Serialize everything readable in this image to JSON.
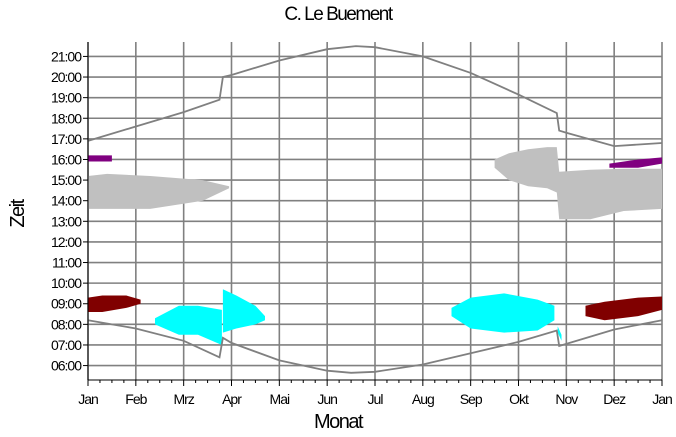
{
  "chart_data": {
    "type": "area",
    "title": "C. Le Buement",
    "xlabel": "Monat",
    "ylabel": "Zeit",
    "x_ticks": [
      "Jan",
      "Feb",
      "Mrz",
      "Apr",
      "Mai",
      "Jun",
      "Jul",
      "Aug",
      "Sep",
      "Okt",
      "Nov",
      "Dez",
      "Jan"
    ],
    "y_ticks": [
      "06:00",
      "07:00",
      "08:00",
      "09:00",
      "10:00",
      "11:00",
      "12:00",
      "13:00",
      "14:00",
      "15:00",
      "16:00",
      "17:00",
      "18:00",
      "19:00",
      "20:00",
      "21:00"
    ],
    "xlim": [
      0,
      12
    ],
    "ylim": [
      5.3,
      21.7
    ],
    "grid": true,
    "sunset_hours": [
      [
        0,
        16.9
      ],
      [
        1,
        17.6
      ],
      [
        2,
        18.3
      ],
      [
        2.75,
        18.9
      ],
      [
        2.82,
        20.0
      ],
      [
        3,
        20.1
      ],
      [
        4,
        20.8
      ],
      [
        5,
        21.35
      ],
      [
        5.6,
        21.5
      ],
      [
        6,
        21.45
      ],
      [
        7,
        21.0
      ],
      [
        8,
        20.2
      ],
      [
        9,
        19.15
      ],
      [
        9.8,
        18.25
      ],
      [
        9.85,
        17.4
      ],
      [
        10,
        17.3
      ],
      [
        11,
        16.65
      ],
      [
        12,
        16.8
      ]
    ],
    "sunrise_hours": [
      [
        0,
        8.2
      ],
      [
        1,
        7.8
      ],
      [
        2,
        7.2
      ],
      [
        2.75,
        6.4
      ],
      [
        2.82,
        7.35
      ],
      [
        3,
        7.1
      ],
      [
        4,
        6.25
      ],
      [
        5,
        5.75
      ],
      [
        5.5,
        5.65
      ],
      [
        6,
        5.7
      ],
      [
        7,
        6.05
      ],
      [
        8,
        6.6
      ],
      [
        9,
        7.15
      ],
      [
        9.8,
        7.7
      ],
      [
        9.85,
        6.95
      ],
      [
        10,
        7.05
      ],
      [
        11,
        7.75
      ],
      [
        12,
        8.2
      ]
    ],
    "series_colors": {
      "gray": "#c0c0c0",
      "cyan": "#00ffff",
      "darkred": "#800000",
      "purple": "#800080",
      "line": "#808080"
    },
    "regions": [
      {
        "color": "gray",
        "upper": [
          [
            0,
            15.2
          ],
          [
            0.4,
            15.3
          ],
          [
            1.3,
            15.2
          ],
          [
            2.4,
            15.0
          ],
          [
            2.95,
            14.7
          ]
        ],
        "lower": [
          [
            0,
            13.6
          ],
          [
            0.4,
            13.6
          ],
          [
            1.3,
            13.6
          ],
          [
            2.4,
            14.0
          ],
          [
            2.95,
            14.6
          ]
        ]
      },
      {
        "color": "gray",
        "upper": [
          [
            8.5,
            16.0
          ],
          [
            8.8,
            16.3
          ],
          [
            9.2,
            16.5
          ],
          [
            9.6,
            16.6
          ],
          [
            9.8,
            16.6
          ],
          [
            9.85,
            15.4
          ],
          [
            10.5,
            15.5
          ],
          [
            11.2,
            15.55
          ],
          [
            12,
            15.55
          ]
        ],
        "lower": [
          [
            8.5,
            15.6
          ],
          [
            8.8,
            15.0
          ],
          [
            9.2,
            14.7
          ],
          [
            9.6,
            14.6
          ],
          [
            9.8,
            14.4
          ],
          [
            9.85,
            13.1
          ],
          [
            10.5,
            13.1
          ],
          [
            11.2,
            13.5
          ],
          [
            12,
            13.6
          ]
        ]
      },
      {
        "color": "purple",
        "upper": [
          [
            0,
            16.2
          ],
          [
            0.5,
            16.2
          ]
        ],
        "lower": [
          [
            0,
            15.9
          ],
          [
            0.5,
            15.9
          ]
        ]
      },
      {
        "color": "purple",
        "upper": [
          [
            10.9,
            15.8
          ],
          [
            11.5,
            16.0
          ],
          [
            12,
            16.1
          ]
        ],
        "lower": [
          [
            10.9,
            15.6
          ],
          [
            11.5,
            15.6
          ],
          [
            12,
            15.8
          ]
        ]
      },
      {
        "color": "darkred",
        "upper": [
          [
            0,
            9.3
          ],
          [
            0.3,
            9.4
          ],
          [
            0.8,
            9.4
          ],
          [
            1.1,
            9.2
          ]
        ],
        "lower": [
          [
            0,
            8.6
          ],
          [
            0.3,
            8.6
          ],
          [
            0.8,
            8.8
          ],
          [
            1.1,
            9.0
          ]
        ]
      },
      {
        "color": "darkred",
        "upper": [
          [
            10.4,
            8.9
          ],
          [
            10.8,
            9.1
          ],
          [
            11.5,
            9.3
          ],
          [
            12,
            9.35
          ]
        ],
        "lower": [
          [
            10.4,
            8.4
          ],
          [
            10.8,
            8.2
          ],
          [
            11.5,
            8.4
          ],
          [
            12,
            8.7
          ]
        ]
      },
      {
        "color": "cyan",
        "upper": [
          [
            1.4,
            8.3
          ],
          [
            1.9,
            8.9
          ],
          [
            2.3,
            8.9
          ],
          [
            2.8,
            8.7
          ]
        ],
        "lower": [
          [
            1.4,
            8.0
          ],
          [
            1.9,
            7.5
          ],
          [
            2.3,
            7.5
          ],
          [
            2.8,
            7.0
          ]
        ]
      },
      {
        "color": "cyan",
        "upper": [
          [
            2.82,
            9.7
          ],
          [
            3.1,
            9.4
          ],
          [
            3.5,
            8.9
          ],
          [
            3.7,
            8.4
          ]
        ],
        "lower": [
          [
            2.82,
            7.6
          ],
          [
            3.1,
            7.8
          ],
          [
            3.5,
            8.0
          ],
          [
            3.7,
            8.2
          ]
        ]
      },
      {
        "color": "cyan",
        "upper": [
          [
            7.6,
            8.8
          ],
          [
            8.0,
            9.3
          ],
          [
            8.7,
            9.5
          ],
          [
            9.4,
            9.2
          ],
          [
            9.75,
            8.9
          ]
        ],
        "lower": [
          [
            7.6,
            8.4
          ],
          [
            8.0,
            7.8
          ],
          [
            8.7,
            7.6
          ],
          [
            9.4,
            7.7
          ],
          [
            9.75,
            8.2
          ]
        ]
      },
      {
        "color": "cyan",
        "upper": [
          [
            9.82,
            7.9
          ],
          [
            9.9,
            7.5
          ]
        ],
        "lower": [
          [
            9.82,
            7.6
          ],
          [
            9.9,
            7.2
          ]
        ]
      }
    ]
  }
}
